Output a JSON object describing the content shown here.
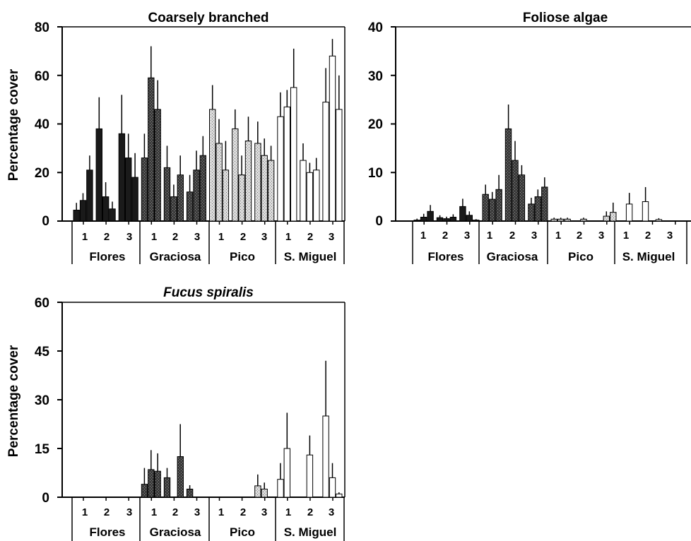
{
  "colors": {
    "Flores": "#1a1a1a",
    "Graciosa": "#4a4a4a",
    "Pico": "#bdbdbd",
    "S. Miguel": "#ffffff",
    "axis": "#000000"
  },
  "chart_data": [
    {
      "type": "bar",
      "title": "Coarsely branched",
      "ylabel": "Percentage cover",
      "ylim": [
        0,
        80
      ],
      "yticks": [
        "0",
        "20",
        "40",
        "60",
        "80"
      ],
      "groups": [
        "Flores",
        "Graciosa",
        "Pico",
        "S. Miguel"
      ],
      "sites": [
        "1",
        "2",
        "3"
      ],
      "bars_per_site": 3,
      "values": [
        [
          [
            4.5,
            8.5,
            21
          ],
          [
            38,
            10,
            5
          ],
          [
            36,
            26,
            18
          ]
        ],
        [
          [
            26,
            59,
            46
          ],
          [
            22,
            10,
            19
          ],
          [
            12,
            21,
            27
          ]
        ],
        [
          [
            46,
            32,
            21
          ],
          [
            38,
            19,
            33
          ],
          [
            32,
            27,
            25
          ]
        ],
        [
          [
            43,
            47,
            55
          ],
          [
            25,
            20,
            21
          ],
          [
            49,
            68,
            46
          ]
        ]
      ],
      "errors": [
        [
          [
            3,
            3,
            6
          ],
          [
            13,
            6,
            3
          ],
          [
            16,
            10,
            10
          ]
        ],
        [
          [
            10,
            13,
            12
          ],
          [
            9,
            5,
            8
          ],
          [
            7,
            8,
            8
          ]
        ],
        [
          [
            10,
            10,
            12
          ],
          [
            8,
            8,
            10
          ],
          [
            9,
            7,
            6
          ]
        ],
        [
          [
            10,
            7,
            16
          ],
          [
            7,
            4,
            5
          ],
          [
            14,
            7,
            14
          ]
        ]
      ]
    },
    {
      "type": "bar",
      "title": "Foliose algae",
      "ylabel": "",
      "ylim": [
        0,
        40
      ],
      "yticks": [
        "0",
        "10",
        "20",
        "30",
        "40"
      ],
      "groups": [
        "Flores",
        "Graciosa",
        "Pico",
        "S. Miguel"
      ],
      "sites": [
        "1",
        "2",
        "3"
      ],
      "bars_per_site": 3,
      "values": [
        [
          [
            0.2,
            0.8,
            2
          ],
          [
            0.7,
            0.5,
            0.8
          ],
          [
            3,
            1.2,
            0.2
          ]
        ],
        [
          [
            5.5,
            4.5,
            6.5
          ],
          [
            19,
            12.5,
            9.5
          ],
          [
            3.5,
            5,
            7
          ]
        ],
        [
          [
            0.4,
            0.4,
            0.4
          ],
          [
            0,
            0.4,
            0
          ],
          [
            0,
            1,
            1.8
          ]
        ],
        [
          [
            0,
            3.5,
            0
          ],
          [
            4,
            0,
            0.3
          ],
          [
            0,
            0,
            0
          ]
        ]
      ],
      "errors": [
        [
          [
            0.3,
            0.7,
            1.3
          ],
          [
            0.5,
            0.4,
            0.6
          ],
          [
            1.6,
            0.8,
            0.2
          ]
        ],
        [
          [
            2,
            1.5,
            3
          ],
          [
            5,
            4,
            2
          ],
          [
            1.3,
            1.5,
            2
          ]
        ],
        [
          [
            0.3,
            0.3,
            0.3
          ],
          [
            0,
            0.3,
            0
          ],
          [
            0,
            1,
            2
          ]
        ],
        [
          [
            0,
            2.3,
            0
          ],
          [
            3,
            0,
            0.3
          ],
          [
            0,
            0,
            0
          ]
        ]
      ]
    },
    {
      "type": "bar",
      "title": "Fucus spiralis",
      "ylabel": "Percentage cover",
      "ylim": [
        0,
        60
      ],
      "yticks": [
        "0",
        "15",
        "30",
        "45",
        "60"
      ],
      "groups": [
        "Flores",
        "Graciosa",
        "Pico",
        "S. Miguel"
      ],
      "sites": [
        "1",
        "2",
        "3"
      ],
      "bars_per_site": 3,
      "values": [
        [
          [
            0,
            0,
            0
          ],
          [
            0,
            0,
            0
          ],
          [
            0,
            0,
            0
          ]
        ],
        [
          [
            4,
            8.5,
            8
          ],
          [
            6,
            0,
            12.5
          ],
          [
            2.5,
            0,
            0
          ]
        ],
        [
          [
            0,
            0,
            0
          ],
          [
            0,
            0,
            0
          ],
          [
            3.5,
            2.5,
            0
          ]
        ],
        [
          [
            5.5,
            15,
            0
          ],
          [
            0,
            13,
            0
          ],
          [
            25,
            6,
            1
          ]
        ]
      ],
      "errors": [
        [
          [
            0,
            0,
            0
          ],
          [
            0,
            0,
            0
          ],
          [
            0,
            0,
            0
          ]
        ],
        [
          [
            5,
            6,
            5.5
          ],
          [
            3,
            0,
            10
          ],
          [
            1.2,
            0,
            0
          ]
        ],
        [
          [
            0,
            0,
            0
          ],
          [
            0,
            0,
            0
          ],
          [
            3.5,
            2,
            0
          ]
        ],
        [
          [
            5,
            11,
            0
          ],
          [
            0,
            6,
            0
          ],
          [
            17,
            4.5,
            0.5
          ]
        ]
      ]
    }
  ]
}
